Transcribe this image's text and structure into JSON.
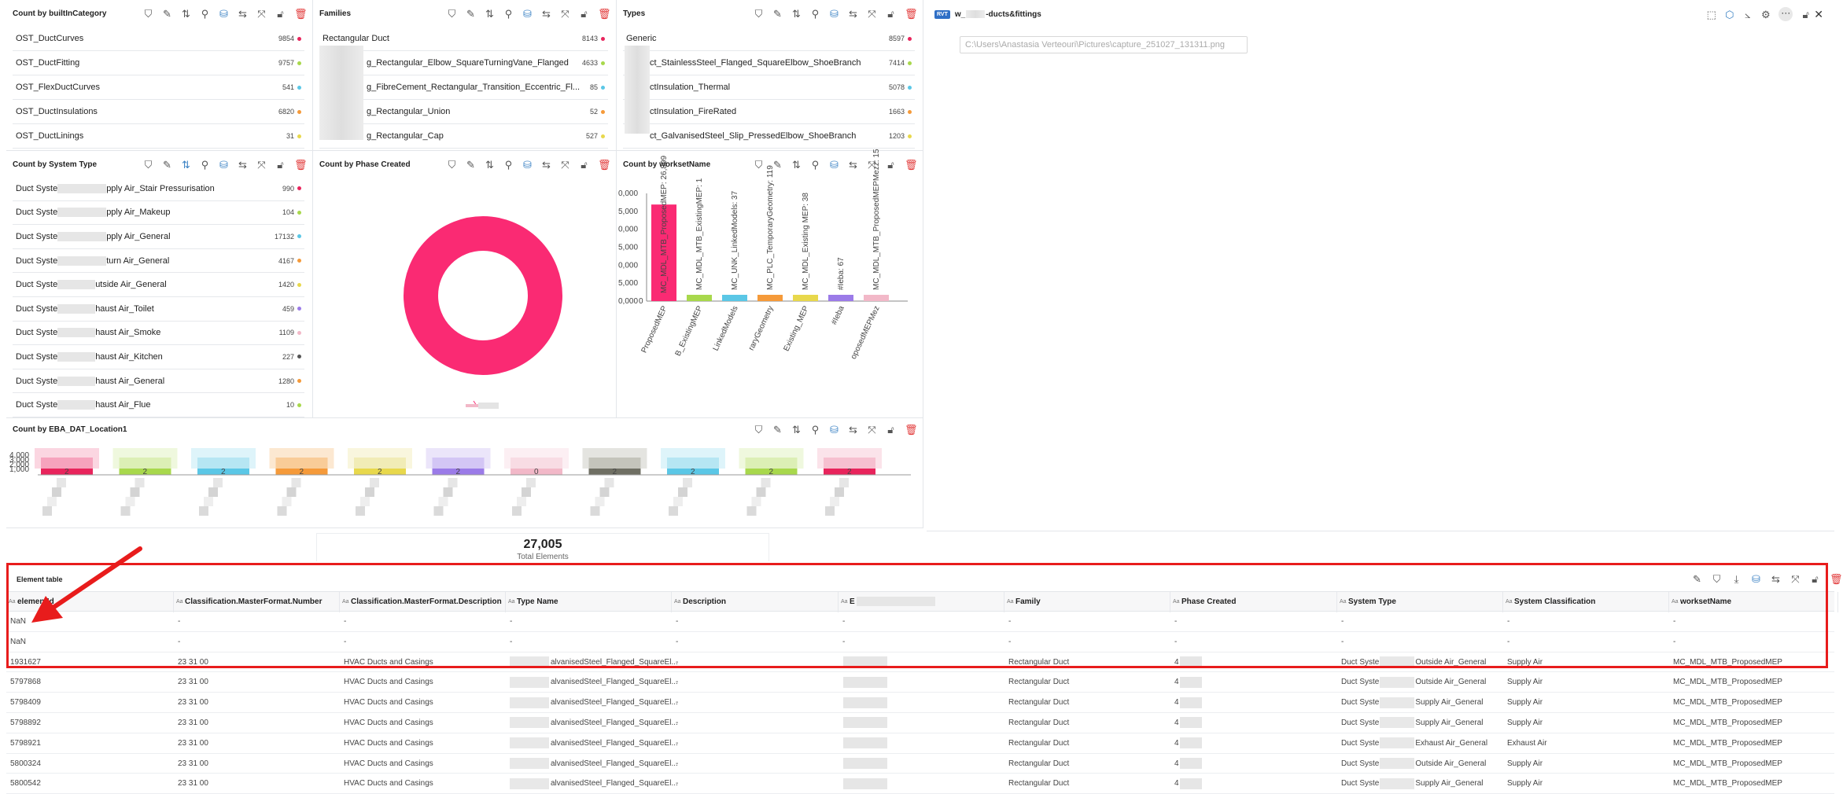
{
  "panels": {
    "builtin_category": {
      "title": "Count by builtInCategory",
      "items": [
        {
          "label": "OST_DuctCurves",
          "count": "9854",
          "color": "#e8245c"
        },
        {
          "label": "OST_DuctFitting",
          "count": "9757",
          "color": "#a8d84c"
        },
        {
          "label": "OST_FlexDuctCurves",
          "count": "541",
          "color": "#5bc7e6"
        },
        {
          "label": "OST_DuctInsulations",
          "count": "6820",
          "color": "#f59a3a"
        },
        {
          "label": "OST_DuctLinings",
          "count": "31",
          "color": "#e8d84c"
        }
      ]
    },
    "families": {
      "title": "Families",
      "items": [
        {
          "label": "Rectangular Duct",
          "count": "8143",
          "color": "#e8245c"
        },
        {
          "label": "g_Rectangular_Elbow_SquareTurningVane_Flanged",
          "count": "4633",
          "color": "#a8d84c"
        },
        {
          "label": "g_FibreCement_Rectangular_Transition_Eccentric_Fl...",
          "count": "85",
          "color": "#5bc7e6"
        },
        {
          "label": "g_Rectangular_Union",
          "count": "52",
          "color": "#f59a3a"
        },
        {
          "label": "g_Rectangular_Cap",
          "count": "527",
          "color": "#e8d84c"
        }
      ]
    },
    "types": {
      "title": "Types",
      "items": [
        {
          "label": "Generic",
          "count": "8597",
          "color": "#e8245c"
        },
        {
          "label": "ct_StainlessSteel_Flanged_SquareElbow_ShoeBranch",
          "count": "7414",
          "color": "#a8d84c"
        },
        {
          "label": "ctInsulation_Thermal",
          "count": "5078",
          "color": "#5bc7e6"
        },
        {
          "label": "ctInsulation_FireRated",
          "count": "1663",
          "color": "#f59a3a"
        },
        {
          "label": "ct_GalvanisedSteel_Slip_PressedElbow_ShoeBranch",
          "count": "1203",
          "color": "#e8d84c"
        }
      ]
    },
    "viewer": {
      "title_prefix": "w_",
      "title_suffix": "-ducts&fittings",
      "badge": "RVT",
      "path": "C:\\Users\\Anastasia Verteouri\\Pictures\\capture_251027_131311.png"
    },
    "system_type": {
      "title": "Count by System Type",
      "items": [
        {
          "prefix": "Duct Syste",
          "suffix": "pply Air_Stair Pressurisation",
          "count": "990",
          "color": "#e8245c"
        },
        {
          "prefix": "Duct Syste",
          "suffix": "pply Air_Makeup",
          "count": "104",
          "color": "#a8d84c"
        },
        {
          "prefix": "Duct Syste",
          "suffix": "pply Air_General",
          "count": "17132",
          "color": "#5bc7e6"
        },
        {
          "prefix": "Duct Syste",
          "suffix": "turn Air_General",
          "count": "4167",
          "color": "#f59a3a"
        },
        {
          "prefix": "Duct Syste",
          "suffix": "utside Air_General",
          "count": "1420",
          "color": "#e8d84c"
        },
        {
          "prefix": "Duct Syste",
          "suffix": "haust Air_Toilet",
          "count": "459",
          "color": "#9b7be8"
        },
        {
          "prefix": "Duct Syste",
          "suffix": "haust Air_Smoke",
          "count": "1109",
          "color": "#f2b8c8"
        },
        {
          "prefix": "Duct Syste",
          "suffix": "haust Air_Kitchen",
          "count": "227",
          "color": "#555555"
        },
        {
          "prefix": "Duct Syste",
          "suffix": "haust Air_General",
          "count": "1280",
          "color": "#f59a3a"
        },
        {
          "prefix": "Duct Syste",
          "suffix": "haust Air_Flue",
          "count": "10",
          "color": "#a8d84c"
        }
      ]
    },
    "phase_created": {
      "title": "Count by Phase Created",
      "ring_color": "#fa2a73"
    },
    "workset": {
      "title": "Count by worksetName",
      "y_ticks": [
        "0,000",
        "5,000",
        "0,000",
        "5,000",
        "0,000",
        "5,000",
        "0,000"
      ],
      "y_bottom": "0",
      "bars": [
        {
          "x": "ProposedMEP",
          "label": "MC_MDL_MTB_ProposedMEP: 26,899",
          "value": 26899,
          "color": "#fa2a73"
        },
        {
          "x": "B_ExistingMEP",
          "label": "MC_MDL_MTB_ExistingMEP: 1",
          "value": 1,
          "color": "#a8d84c"
        },
        {
          "x": "LinkedModels",
          "label": "MC_UNK_LinkedModels: 37",
          "value": 37,
          "color": "#5bc7e6"
        },
        {
          "x": "raryGeometry",
          "label": "MC_PLC_TemporaryGeometry: 119",
          "value": 119,
          "color": "#f59a3a"
        },
        {
          "x": "Existing_MEP",
          "label": "MC_MDL_Existing MEP: 38",
          "value": 38,
          "color": "#e8d84c"
        },
        {
          "x": "#Ieba",
          "label": "#Ieba: 67",
          "value": 67,
          "color": "#9b7be8"
        },
        {
          "x": "oposedMEPMez",
          "label": "MC_MDL_MTB_ProposedMEPMezz: 15",
          "value": 15,
          "color": "#f2b8c8"
        }
      ]
    },
    "location": {
      "title": "Count by EBA_DAT_Location1",
      "y_ticks": [
        "4,000",
        "3,000",
        "2,000",
        "1,000"
      ],
      "bars": [
        {
          "color": "#e8245c",
          "light": "#f6a3bd",
          "label": "2"
        },
        {
          "color": "#a8d84c",
          "light": "#dcefb5",
          "label": "2"
        },
        {
          "color": "#5bc7e6",
          "light": "#b6e6f3",
          "label": "2"
        },
        {
          "color": "#f59a3a",
          "light": "#f9cc98",
          "label": "2"
        },
        {
          "color": "#e8d84c",
          "light": "#f1ecb6",
          "label": "2"
        },
        {
          "color": "#9b7be8",
          "light": "#d3c6f5",
          "label": "2"
        },
        {
          "color": "#f2b8c8",
          "light": "#f8dce4",
          "label": "0"
        },
        {
          "color": "#6f6f63",
          "light": "#c4c4bb",
          "label": "2"
        },
        {
          "color": "#5bc7e6",
          "light": "#b6e6f3",
          "label": "2"
        },
        {
          "color": "#a8d84c",
          "light": "#dcefb5",
          "label": "2"
        },
        {
          "color": "#e8245c",
          "light": "#f6c0d0",
          "label": "2"
        }
      ]
    },
    "total": {
      "value": "27,005",
      "label": "Total Elements"
    }
  },
  "table": {
    "title": "Element table",
    "columns": [
      "elementId",
      "Classification.MasterFormat.Number",
      "Classification.MasterFormat.Description",
      "Type Name",
      "Description",
      "E",
      "Family",
      "Phase Created",
      "System Type",
      "System Classification",
      "worksetName"
    ],
    "rows": [
      [
        "NaN",
        "-",
        "-",
        "-",
        "-",
        "-",
        "-",
        "-",
        "-",
        "-",
        "-"
      ],
      [
        "NaN",
        "-",
        "-",
        "-",
        "-",
        "-",
        "-",
        "-",
        "-",
        "-",
        "-"
      ],
      [
        "1931627",
        "23 31 00",
        "HVAC Ducts and Casings",
        "alvanisedSteel_Flanged_SquareEl...",
        "-",
        "",
        "Rectangular Duct",
        "4",
        "Duct Syste",
        "Supply Air",
        "MC_MDL_MTB_ProposedMEP"
      ],
      [
        "5797868",
        "23 31 00",
        "HVAC Ducts and Casings",
        "alvanisedSteel_Flanged_SquareEl...",
        "-",
        "",
        "Rectangular Duct",
        "4",
        "Duct Syste",
        "Supply Air",
        "MC_MDL_MTB_ProposedMEP"
      ],
      [
        "5798409",
        "23 31 00",
        "HVAC Ducts and Casings",
        "alvanisedSteel_Flanged_SquareEl...",
        "-",
        "",
        "Rectangular Duct",
        "4",
        "Duct Syste",
        "Supply Air",
        "MC_MDL_MTB_ProposedMEP"
      ],
      [
        "5798892",
        "23 31 00",
        "HVAC Ducts and Casings",
        "alvanisedSteel_Flanged_SquareEl...",
        "-",
        "",
        "Rectangular Duct",
        "4",
        "Duct Syste",
        "Supply Air",
        "MC_MDL_MTB_ProposedMEP"
      ],
      [
        "5798921",
        "23 31 00",
        "HVAC Ducts and Casings",
        "alvanisedSteel_Flanged_SquareEl...",
        "-",
        "",
        "Rectangular Duct",
        "4",
        "Duct Syste",
        "Exhaust Air",
        "MC_MDL_MTB_ProposedMEP"
      ],
      [
        "5800324",
        "23 31 00",
        "HVAC Ducts and Casings",
        "alvanisedSteel_Flanged_SquareEl...",
        "-",
        "",
        "Rectangular Duct",
        "4",
        "Duct Syste",
        "Supply Air",
        "MC_MDL_MTB_ProposedMEP"
      ],
      [
        "5800542",
        "23 31 00",
        "HVAC Ducts and Casings",
        "alvanisedSteel_Flanged_SquareEl...",
        "-",
        "",
        "Rectangular Duct",
        "4",
        "Duct Syste",
        "Supply Air",
        "MC_MDL_MTB_ProposedMEP"
      ]
    ],
    "row_suffix_system": [
      "",
      "",
      "Outside Air_General",
      "Outside Air_General",
      "Supply Air_General",
      "Supply Air_General",
      "Exhaust Air_General",
      "Outside Air_General",
      "Supply Air_General"
    ]
  },
  "annotation": {
    "highlight_color": "#e81c1c"
  }
}
